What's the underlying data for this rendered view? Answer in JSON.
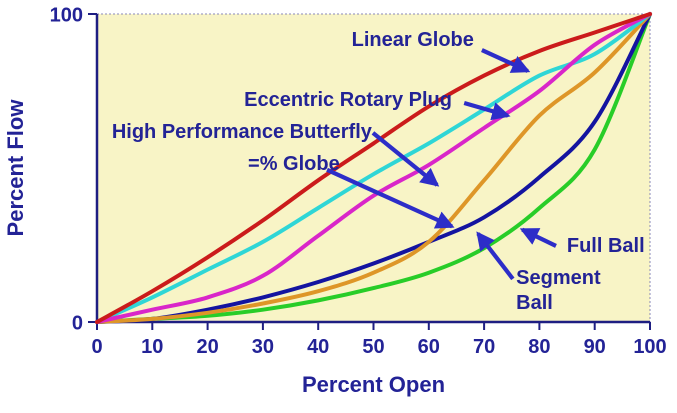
{
  "chart_data": {
    "type": "line",
    "title": "",
    "xlabel": "Percent Open",
    "ylabel": "Percent Flow",
    "xlim": [
      0,
      100
    ],
    "ylim": [
      0,
      100
    ],
    "x_ticks": [
      0,
      10,
      20,
      30,
      40,
      50,
      60,
      70,
      80,
      90,
      100
    ],
    "y_ticks": [
      0,
      100
    ],
    "grid": "off",
    "legend_position": "none - curves labeled by arrow annotations",
    "x": [
      0,
      10,
      20,
      30,
      40,
      50,
      60,
      70,
      80,
      90,
      100
    ],
    "series": [
      {
        "name": "Full Ball",
        "color": "#28cd28",
        "values": [
          0,
          1,
          2,
          4,
          7,
          11,
          16,
          24,
          37,
          56,
          100
        ]
      },
      {
        "name": "Segment Ball",
        "color": "#1414a0",
        "values": [
          0,
          1,
          4,
          8,
          13,
          19,
          26,
          34,
          47,
          65,
          100
        ]
      },
      {
        "name": "=% Globe",
        "color": "#de9628",
        "values": [
          0,
          1,
          3,
          6,
          10,
          16,
          26,
          46,
          67,
          81,
          100
        ]
      },
      {
        "name": "Eccentric Rotary Plug",
        "color": "#2fd6d6",
        "values": [
          0,
          8,
          17,
          26,
          37,
          48,
          58,
          69,
          80,
          87,
          100
        ]
      },
      {
        "name": "High Performance Butterfly",
        "color": "#d926c9",
        "values": [
          0,
          4,
          8,
          15,
          28,
          41,
          51,
          63,
          75,
          90,
          100
        ]
      },
      {
        "name": "Linear Globe",
        "color": "#cb1b1b",
        "values": [
          0,
          10,
          21,
          33,
          46,
          58,
          70,
          80,
          88,
          94,
          100
        ]
      }
    ],
    "annotations": [
      {
        "label": "Linear Globe",
        "lines": [
          "Linear Globe"
        ],
        "align": "middle",
        "text_x": 57.1,
        "text_y": 91.9,
        "arrow": [
          [
            69.6,
            88.3
          ],
          [
            77.9,
            81.5
          ]
        ]
      },
      {
        "label": "Eccentric Rotary Plug",
        "lines": [
          "Eccentric Rotary Plug"
        ],
        "align": "middle",
        "text_x": 45.4,
        "text_y": 72.4,
        "arrow": [
          [
            66.4,
            71.1
          ],
          [
            74.3,
            67.0
          ]
        ]
      },
      {
        "label": "High Performance Butterfly",
        "lines": [
          "High Performance Butterfly"
        ],
        "align": "middle",
        "text_x": 26.2,
        "text_y": 62.0,
        "arrow": [
          [
            49.9,
            61.4
          ],
          [
            61.5,
            44.5
          ]
        ]
      },
      {
        "label": "=% Globe",
        "lines": [
          "=% Globe"
        ],
        "align": "middle",
        "text_x": 35.6,
        "text_y": 51.6,
        "arrow": [
          [
            41.6,
            49.4
          ],
          [
            64.2,
            31.0
          ]
        ]
      },
      {
        "label": "Full Ball",
        "lines": [
          "Full Ball"
        ],
        "align": "middle",
        "text_x": 92.0,
        "text_y": 25.0,
        "arrow": [
          [
            83.0,
            24.7
          ],
          [
            76.9,
            30.0
          ]
        ]
      },
      {
        "label": "Segment Ball",
        "lines": [
          "Segment",
          "Ball"
        ],
        "align": "start",
        "text_x": 75.8,
        "text_y": 10.5,
        "arrow": [
          [
            75.2,
            14.0
          ],
          [
            68.9,
            28.7
          ]
        ]
      }
    ],
    "style": {
      "plot_background": "#f8f4c6",
      "outer_background": "#ffffff",
      "axis_color": "#1e1e82",
      "frame_color": "#8a8ab8",
      "text_color": "#232396",
      "arrow_color": "#2d2dc8",
      "curve_width": 4,
      "tick_font_size": 20,
      "axis_title_font_size": 22,
      "annotation_font_size": 20
    }
  }
}
